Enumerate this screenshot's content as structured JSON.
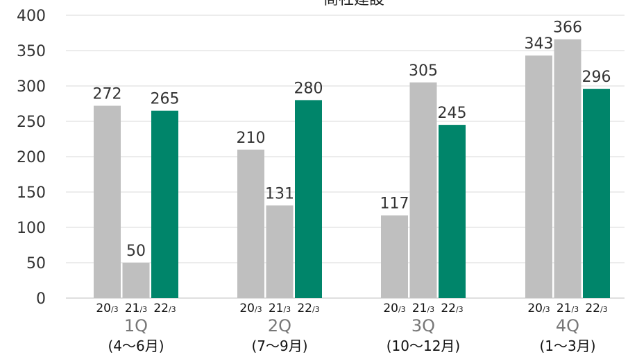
{
  "chart_data": {
    "type": "bar",
    "title": "商社建設",
    "ylim": [
      0,
      400
    ],
    "yticks": [
      0,
      50,
      100,
      150,
      200,
      250,
      300,
      350,
      400
    ],
    "grid": true,
    "legend": "none",
    "categories": [
      {
        "quarter": "1Q",
        "months": "(4〜6月)"
      },
      {
        "quarter": "2Q",
        "months": "(7〜9月)"
      },
      {
        "quarter": "3Q",
        "months": "(10〜12月)"
      },
      {
        "quarter": "4Q",
        "months": "(1〜3月)"
      }
    ],
    "series": [
      {
        "period": "20",
        "suffix": "/3",
        "values": [
          272,
          210,
          117,
          343
        ],
        "color": "#bfbfbf"
      },
      {
        "period": "21",
        "suffix": "/3",
        "values": [
          50,
          131,
          305,
          366
        ],
        "color": "#bfbfbf"
      },
      {
        "period": "22",
        "suffix": "/3",
        "values": [
          265,
          280,
          245,
          296
        ],
        "color": "#00856a"
      }
    ]
  }
}
